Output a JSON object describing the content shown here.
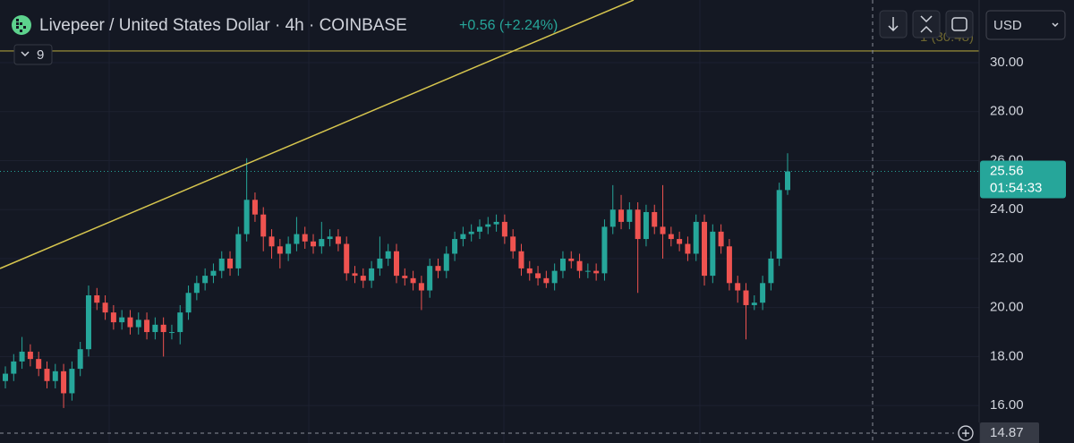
{
  "chart_data": {
    "type": "candlestick",
    "title": "Livepeer / United States Dollar · 4h · COINBASE",
    "change": "+0.56 (+2.24%)",
    "indicators": "9",
    "currency": "USD",
    "up_color": "#26a69a",
    "down_color": "#ef5350",
    "open": [
      17.0,
      17.3,
      17.8,
      18.2,
      17.9,
      17.5,
      17.0,
      17.4,
      16.5,
      17.5,
      18.3,
      20.5,
      20.2,
      19.8,
      19.4,
      19.6,
      19.2,
      19.5,
      19.0,
      19.3,
      19.0,
      19.0,
      19.8,
      20.6,
      21.0,
      21.3,
      21.5,
      22.0,
      21.6,
      23.0,
      24.4,
      23.8,
      22.9,
      22.5,
      22.2,
      22.6,
      23.0,
      22.7,
      22.5,
      22.8,
      22.9,
      22.6,
      21.4,
      21.3,
      21.1,
      21.6,
      22.0,
      22.3,
      21.3,
      21.2,
      21.0,
      20.7,
      21.7,
      21.5,
      22.2,
      22.8,
      23.0,
      23.1,
      23.3,
      23.4,
      23.5,
      22.9,
      22.3,
      21.6,
      21.4,
      21.2,
      21.0,
      21.5,
      22.0,
      21.9,
      21.5,
      21.5,
      21.4,
      23.3,
      24.0,
      23.5,
      24.0,
      22.8,
      23.9,
      23.3,
      23.0,
      22.8,
      22.6,
      22.2,
      23.5,
      21.3,
      23.1,
      22.5,
      21.0,
      20.7,
      20.1,
      20.2,
      21.0,
      22.0,
      24.8
    ],
    "high": [
      17.6,
      18.1,
      18.8,
      18.5,
      18.2,
      17.8,
      17.7,
      17.7,
      17.8,
      18.6,
      20.9,
      20.8,
      20.5,
      20.1,
      19.9,
      19.9,
      19.8,
      19.8,
      19.6,
      19.6,
      19.3,
      20.1,
      20.9,
      21.3,
      21.6,
      21.8,
      22.3,
      22.3,
      23.3,
      26.1,
      24.7,
      24.1,
      23.2,
      22.8,
      22.9,
      23.7,
      23.3,
      23.0,
      23.5,
      23.2,
      23.2,
      22.9,
      21.7,
      21.6,
      21.9,
      22.9,
      22.6,
      22.6,
      21.6,
      21.5,
      21.3,
      22.0,
      22.0,
      22.5,
      23.1,
      23.3,
      23.4,
      23.6,
      23.7,
      23.8,
      23.8,
      23.2,
      22.6,
      21.9,
      21.7,
      21.5,
      21.8,
      22.3,
      22.3,
      22.2,
      21.8,
      21.8,
      23.6,
      25.0,
      24.6,
      24.3,
      24.3,
      24.2,
      24.2,
      25.0,
      23.3,
      23.1,
      22.9,
      23.8,
      23.8,
      23.4,
      23.4,
      22.8,
      21.3,
      21.0,
      20.5,
      21.3,
      22.3,
      25.1,
      26.3
    ],
    "low": [
      16.7,
      17.0,
      17.5,
      17.6,
      17.2,
      16.7,
      16.7,
      15.9,
      16.2,
      17.2,
      18.0,
      19.9,
      19.5,
      19.1,
      19.1,
      18.9,
      18.9,
      18.7,
      18.7,
      18.0,
      18.7,
      18.5,
      19.5,
      20.3,
      20.7,
      21.0,
      21.2,
      21.3,
      21.3,
      22.7,
      23.5,
      22.3,
      22.0,
      21.6,
      21.9,
      22.3,
      22.4,
      22.2,
      22.2,
      22.5,
      22.3,
      21.1,
      21.0,
      20.8,
      20.8,
      21.3,
      21.7,
      21.0,
      20.9,
      20.7,
      19.9,
      20.4,
      21.2,
      21.2,
      21.9,
      22.5,
      22.7,
      22.8,
      23.0,
      23.1,
      22.6,
      22.0,
      21.3,
      21.1,
      20.9,
      20.8,
      20.7,
      21.2,
      21.6,
      21.2,
      21.2,
      21.1,
      21.1,
      23.0,
      23.2,
      23.2,
      20.6,
      22.5,
      23.0,
      22.0,
      22.5,
      22.3,
      21.9,
      21.9,
      20.9,
      21.0,
      22.2,
      20.7,
      20.2,
      18.7,
      19.9,
      19.9,
      20.7,
      21.7,
      24.6
    ],
    "close": [
      17.3,
      17.8,
      18.2,
      17.9,
      17.5,
      17.0,
      17.4,
      16.5,
      17.5,
      18.3,
      20.5,
      20.2,
      19.8,
      19.4,
      19.6,
      19.2,
      19.5,
      19.0,
      19.3,
      19.0,
      19.0,
      19.8,
      20.6,
      21.0,
      21.3,
      21.5,
      22.0,
      21.6,
      23.0,
      24.4,
      23.8,
      22.9,
      22.5,
      22.2,
      22.6,
      23.0,
      22.7,
      22.5,
      22.8,
      22.9,
      22.6,
      21.4,
      21.3,
      21.1,
      21.6,
      22.0,
      22.3,
      21.3,
      21.2,
      21.0,
      20.7,
      21.7,
      21.5,
      22.2,
      22.8,
      23.0,
      23.1,
      23.3,
      23.4,
      23.5,
      22.9,
      22.3,
      21.6,
      21.4,
      21.2,
      21.0,
      21.5,
      22.0,
      21.9,
      21.5,
      21.5,
      21.4,
      23.3,
      24.0,
      23.5,
      24.0,
      22.8,
      23.9,
      23.3,
      23.0,
      22.8,
      22.6,
      22.2,
      23.5,
      21.3,
      23.1,
      22.5,
      21.0,
      20.7,
      20.1,
      20.2,
      21.0,
      22.0,
      24.8,
      25.56
    ],
    "ylim": [
      14.47,
      32.56
    ],
    "yticks": [
      {
        "value": 16,
        "label": "16.00"
      },
      {
        "value": 18,
        "label": "18.00"
      },
      {
        "value": 20,
        "label": "20.00"
      },
      {
        "value": 22,
        "label": "22.00"
      },
      {
        "value": 24,
        "label": "24.00"
      },
      {
        "value": 26,
        "label": "26.00"
      },
      {
        "value": 28,
        "label": "28.00"
      },
      {
        "value": 30,
        "label": "30.00"
      }
    ],
    "horizontal_line": {
      "value": 30.48,
      "label": "1 (30.48)",
      "color": "#a89a3a"
    },
    "last_price": {
      "value": 25.56,
      "label": "25.56",
      "countdown": "01:54:33"
    },
    "crosshair": {
      "value": 14.87,
      "label": "14.87"
    }
  }
}
